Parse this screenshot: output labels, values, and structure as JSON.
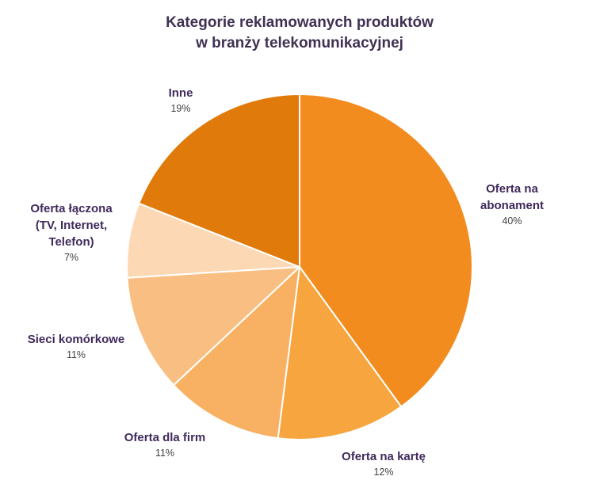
{
  "chart_data": {
    "type": "pie",
    "title": [
      "Kategorie reklamowanych produktów",
      "w branży telekomunikacyjnej"
    ],
    "start_angle_deg": 0,
    "direction": "clockwise",
    "slices": [
      {
        "label": [
          "Oferta na",
          "abonament"
        ],
        "value": 40,
        "display": "40%",
        "color": "#f28c1e"
      },
      {
        "label": [
          "Oferta na kartę"
        ],
        "value": 12,
        "display": "12%",
        "color": "#f7a53e"
      },
      {
        "label": [
          "Oferta dla firm"
        ],
        "value": 11,
        "display": "11%",
        "color": "#f8b062"
      },
      {
        "label": [
          "Sieci komórkowe"
        ],
        "value": 11,
        "display": "11%",
        "color": "#f9bf82"
      },
      {
        "label": [
          "Oferta łączona",
          "(TV, Internet,",
          "Telefon)"
        ],
        "value": 7,
        "display": "7%",
        "color": "#fcd9b4"
      },
      {
        "label": [
          "Inne"
        ],
        "value": 19,
        "display": "19%",
        "color": "#e07b0b"
      }
    ],
    "legend": "none"
  },
  "colors": {
    "title": "#403152",
    "category_label": "#3f2a5c",
    "percent_label": "#404040",
    "slice_border": "#ffffff",
    "background": "#ffffff"
  }
}
